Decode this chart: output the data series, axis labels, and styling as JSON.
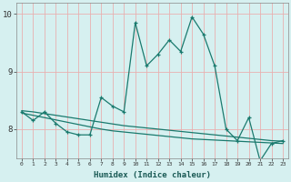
{
  "xlabel": "Humidex (Indice chaleur)",
  "bg_color": "#d6f0f0",
  "grid_color": "#e8b0b0",
  "line_color": "#1a7a6e",
  "xlim": [
    -0.5,
    23.5
  ],
  "ylim": [
    7.5,
    10.2
  ],
  "yticks": [
    8,
    9,
    10
  ],
  "xticks": [
    0,
    1,
    2,
    3,
    4,
    5,
    6,
    7,
    8,
    9,
    10,
    11,
    12,
    13,
    14,
    15,
    16,
    17,
    18,
    19,
    20,
    21,
    22,
    23
  ],
  "line1_x": [
    0,
    1,
    2,
    3,
    4,
    5,
    6,
    7,
    8,
    9,
    10,
    11,
    12,
    13,
    14,
    15,
    16,
    17,
    18,
    19,
    20,
    21,
    22,
    23
  ],
  "line1_y": [
    8.3,
    8.15,
    8.3,
    8.1,
    7.95,
    7.9,
    7.9,
    8.55,
    8.4,
    8.3,
    9.85,
    9.1,
    9.3,
    9.55,
    9.35,
    9.95,
    9.65,
    9.1,
    8.0,
    7.8,
    8.2,
    7.45,
    7.75,
    7.8
  ],
  "line2_x": [
    0,
    1,
    2,
    3,
    4,
    5,
    6,
    7,
    8,
    9,
    10,
    11,
    12,
    13,
    14,
    15,
    16,
    17,
    18,
    19,
    20,
    21,
    22,
    23
  ],
  "line2_y": [
    8.32,
    8.3,
    8.27,
    8.24,
    8.21,
    8.18,
    8.15,
    8.12,
    8.09,
    8.06,
    8.04,
    8.02,
    8.0,
    7.98,
    7.96,
    7.94,
    7.92,
    7.9,
    7.88,
    7.86,
    7.84,
    7.82,
    7.8,
    7.79
  ],
  "line3_x": [
    0,
    1,
    2,
    3,
    4,
    5,
    6,
    7,
    8,
    9,
    10,
    11,
    12,
    13,
    14,
    15,
    16,
    17,
    18,
    19,
    20,
    21,
    22,
    23
  ],
  "line3_y": [
    8.28,
    8.24,
    8.2,
    8.16,
    8.12,
    8.08,
    8.04,
    8.0,
    7.97,
    7.95,
    7.93,
    7.91,
    7.89,
    7.87,
    7.85,
    7.83,
    7.82,
    7.81,
    7.8,
    7.79,
    7.78,
    7.77,
    7.76,
    7.75
  ]
}
